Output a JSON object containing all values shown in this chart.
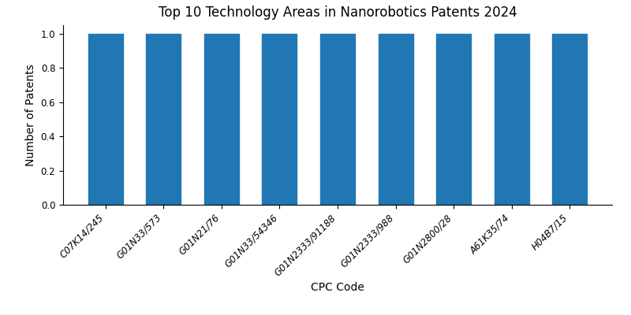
{
  "title": "Top 10 Technology Areas in Nanorobotics Patents 2024",
  "xlabel": "CPC Code",
  "ylabel": "Number of Patents",
  "categories": [
    "C07K14/245",
    "G01N33/573",
    "G01N21/76",
    "G01N33/54346",
    "G01N2333/91188",
    "G01N2333/988",
    "G01N2800/28",
    "A61K35/74",
    "H04B7/15"
  ],
  "values": [
    1,
    1,
    1,
    1,
    1,
    1,
    1,
    1,
    1
  ],
  "bar_color": "#2077b4",
  "ylim": [
    0,
    1.05
  ],
  "yticks": [
    0.0,
    0.2,
    0.4,
    0.6,
    0.8,
    1.0
  ],
  "background_color": "#ffffff",
  "title_fontsize": 12,
  "label_fontsize": 10,
  "tick_fontsize": 8.5,
  "figsize": [
    8.0,
    4.0
  ],
  "dpi": 100
}
